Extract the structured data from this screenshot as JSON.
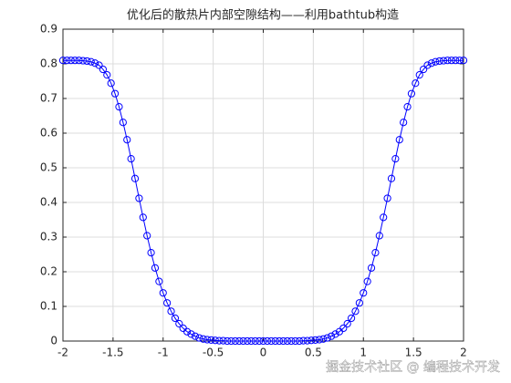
{
  "chart_data": {
    "type": "line",
    "title": "优化后的散热片内部空隙结构——利用bathtub构造",
    "x": [
      -2,
      -1.96,
      -1.92,
      -1.88,
      -1.84,
      -1.8,
      -1.76,
      -1.72,
      -1.68,
      -1.64,
      -1.6,
      -1.56,
      -1.52,
      -1.48,
      -1.44,
      -1.4,
      -1.36,
      -1.32,
      -1.28,
      -1.24,
      -1.2,
      -1.16,
      -1.12,
      -1.08,
      -1.04,
      -1,
      -0.96,
      -0.92,
      -0.88,
      -0.84,
      -0.8,
      -0.76,
      -0.72,
      -0.68,
      -0.64,
      -0.6,
      -0.56,
      -0.52,
      -0.48,
      -0.44,
      -0.4,
      -0.36,
      -0.32,
      -0.28,
      -0.24,
      -0.2,
      -0.16,
      -0.12,
      -0.08,
      -0.04,
      0,
      0.04,
      0.08,
      0.12,
      0.16,
      0.2,
      0.24,
      0.28,
      0.32,
      0.36,
      0.4,
      0.44,
      0.48,
      0.52,
      0.56,
      0.6,
      0.64,
      0.68,
      0.72,
      0.76,
      0.8,
      0.84,
      0.88,
      0.92,
      0.96,
      1,
      1.04,
      1.08,
      1.12,
      1.16,
      1.2,
      1.24,
      1.28,
      1.32,
      1.36,
      1.4,
      1.44,
      1.48,
      1.52,
      1.56,
      1.6,
      1.64,
      1.68,
      1.72,
      1.76,
      1.8,
      1.84,
      1.88,
      1.92,
      1.96,
      2
    ],
    "values": [
      0.81,
      0.81,
      0.81,
      0.81,
      0.81,
      0.809,
      0.808,
      0.806,
      0.802,
      0.796,
      0.784,
      0.768,
      0.744,
      0.714,
      0.676,
      0.631,
      0.581,
      0.526,
      0.469,
      0.412,
      0.357,
      0.304,
      0.255,
      0.211,
      0.172,
      0.139,
      0.11,
      0.086,
      0.066,
      0.05,
      0.037,
      0.027,
      0.02,
      0.014,
      0.009,
      0.006,
      0.004,
      0.003,
      0.002,
      0.001,
      0.001,
      0,
      0,
      0,
      0,
      0,
      0,
      0,
      0,
      0,
      0,
      0,
      0,
      0,
      0,
      0,
      0,
      0,
      0,
      0,
      0.001,
      0.001,
      0.002,
      0.003,
      0.004,
      0.006,
      0.009,
      0.014,
      0.02,
      0.027,
      0.037,
      0.05,
      0.066,
      0.086,
      0.11,
      0.139,
      0.172,
      0.211,
      0.255,
      0.304,
      0.357,
      0.412,
      0.469,
      0.526,
      0.581,
      0.631,
      0.676,
      0.714,
      0.744,
      0.768,
      0.784,
      0.796,
      0.802,
      0.806,
      0.808,
      0.809,
      0.81,
      0.81,
      0.81,
      0.81,
      0.81
    ],
    "color": "#0000ff",
    "marker": "circle",
    "xlim": [
      -2,
      2
    ],
    "xticks": [
      -2,
      -1.5,
      -1,
      -0.5,
      0,
      0.5,
      1,
      1.5,
      2
    ],
    "ylim": [
      0,
      0.9
    ],
    "yticks": [
      0,
      0.1,
      0.2,
      0.3,
      0.4,
      0.5,
      0.6,
      0.7,
      0.8,
      0.9
    ],
    "grid": true,
    "watermark": "掘金技术社区 @ 编程技术开发"
  }
}
